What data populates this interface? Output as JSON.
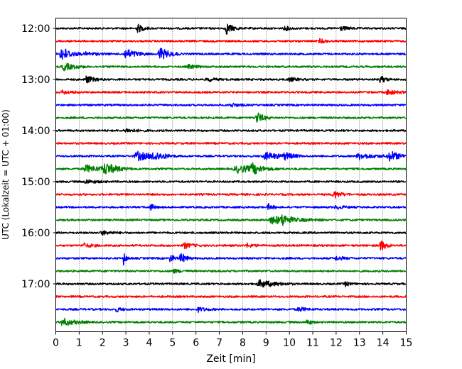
{
  "chart_data": {
    "type": "line",
    "title": "",
    "xlabel": "Zeit  [min]",
    "ylabel": "UTC (Lokalzeit = UTC + 01:00)",
    "xlim": [
      0,
      15
    ],
    "x_ticks": [
      0,
      1,
      2,
      3,
      4,
      5,
      6,
      7,
      8,
      9,
      10,
      11,
      12,
      13,
      14,
      15
    ],
    "x_tick_labels": [
      "0",
      "1",
      "2",
      "3",
      "4",
      "5",
      "6",
      "7",
      "8",
      "9",
      "10",
      "11",
      "12",
      "13",
      "14",
      "15"
    ],
    "y_tick_labels": [
      "12:00",
      "13:00",
      "14:00",
      "15:00",
      "16:00",
      "17:00"
    ],
    "grid": "vertical dotted at each minute",
    "trace_interval_min": 15,
    "color_cycle": [
      "#000000",
      "#ff0000",
      "#0000ff",
      "#008000"
    ],
    "series": [
      {
        "start": "12:00",
        "color": "#000000",
        "events": [
          {
            "x": 3.5,
            "amp": 6,
            "dur": 0.2
          },
          {
            "x": 7.3,
            "amp": 8,
            "dur": 0.25
          },
          {
            "x": 9.8,
            "amp": 3,
            "dur": 0.2
          },
          {
            "x": 12.2,
            "amp": 2.5,
            "dur": 0.3
          }
        ]
      },
      {
        "start": "12:15",
        "color": "#ff0000",
        "events": [
          {
            "x": 11.3,
            "amp": 3,
            "dur": 0.2
          }
        ]
      },
      {
        "start": "12:30",
        "color": "#0000ff",
        "events": [
          {
            "x": 0.25,
            "amp": 10,
            "dur": 0.35
          },
          {
            "x": 3.0,
            "amp": 7,
            "dur": 0.4
          },
          {
            "x": 4.45,
            "amp": 9,
            "dur": 0.35
          },
          {
            "x": 1.3,
            "amp": 2.5,
            "dur": 0.4
          }
        ]
      },
      {
        "start": "12:45",
        "color": "#008000",
        "events": [
          {
            "x": 0.35,
            "amp": 5,
            "dur": 0.4
          },
          {
            "x": 5.7,
            "amp": 2.5,
            "dur": 0.3
          }
        ]
      },
      {
        "start": "13:00",
        "color": "#000000",
        "events": [
          {
            "x": 1.3,
            "amp": 5,
            "dur": 0.3
          },
          {
            "x": 6.5,
            "amp": 2.5,
            "dur": 0.3
          },
          {
            "x": 10.0,
            "amp": 2.5,
            "dur": 0.3
          },
          {
            "x": 13.9,
            "amp": 5,
            "dur": 0.2
          }
        ]
      },
      {
        "start": "13:15",
        "color": "#ff0000",
        "events": [
          {
            "x": 0.3,
            "amp": 2.5,
            "dur": 0.3
          },
          {
            "x": 14.2,
            "amp": 3.5,
            "dur": 0.35
          }
        ]
      },
      {
        "start": "13:30",
        "color": "#0000ff",
        "events": [
          {
            "x": 7.5,
            "amp": 2.5,
            "dur": 0.3
          }
        ]
      },
      {
        "start": "13:45",
        "color": "#008000",
        "events": [
          {
            "x": 8.6,
            "amp": 8,
            "dur": 0.25
          }
        ]
      },
      {
        "start": "14:00",
        "color": "#000000",
        "events": [
          {
            "x": 3.0,
            "amp": 2.5,
            "dur": 0.4
          }
        ]
      },
      {
        "start": "14:15",
        "color": "#ff0000",
        "events": []
      },
      {
        "start": "14:30",
        "color": "#0000ff",
        "events": [
          {
            "x": 3.5,
            "amp": 6,
            "dur": 0.6
          },
          {
            "x": 4.2,
            "amp": 5,
            "dur": 0.4
          },
          {
            "x": 9.0,
            "amp": 5,
            "dur": 0.6
          },
          {
            "x": 9.8,
            "amp": 4,
            "dur": 0.3
          },
          {
            "x": 13.0,
            "amp": 4,
            "dur": 0.6
          },
          {
            "x": 14.3,
            "amp": 7,
            "dur": 0.4
          }
        ]
      },
      {
        "start": "14:45",
        "color": "#008000",
        "events": [
          {
            "x": 1.3,
            "amp": 5,
            "dur": 0.6
          },
          {
            "x": 2.1,
            "amp": 7,
            "dur": 0.5
          },
          {
            "x": 7.8,
            "amp": 5,
            "dur": 0.8
          },
          {
            "x": 8.4,
            "amp": 6,
            "dur": 0.3
          }
        ]
      },
      {
        "start": "15:00",
        "color": "#000000",
        "events": [
          {
            "x": 1.3,
            "amp": 2.5,
            "dur": 0.4
          }
        ]
      },
      {
        "start": "15:15",
        "color": "#ff0000",
        "events": [
          {
            "x": 11.9,
            "amp": 5,
            "dur": 0.3
          }
        ]
      },
      {
        "start": "15:30",
        "color": "#0000ff",
        "events": [
          {
            "x": 4.05,
            "amp": 5,
            "dur": 0.15
          },
          {
            "x": 9.1,
            "amp": 4,
            "dur": 0.2
          },
          {
            "x": 12.0,
            "amp": 2.5,
            "dur": 0.3
          }
        ]
      },
      {
        "start": "15:45",
        "color": "#008000",
        "events": [
          {
            "x": 9.3,
            "amp": 5,
            "dur": 0.9
          },
          {
            "x": 9.7,
            "amp": 6,
            "dur": 0.2
          }
        ]
      },
      {
        "start": "16:00",
        "color": "#000000",
        "events": [
          {
            "x": 2.0,
            "amp": 2.5,
            "dur": 0.4
          }
        ]
      },
      {
        "start": "16:15",
        "color": "#ff0000",
        "events": [
          {
            "x": 1.2,
            "amp": 3,
            "dur": 0.3
          },
          {
            "x": 5.5,
            "amp": 4,
            "dur": 0.3
          },
          {
            "x": 8.2,
            "amp": 2.5,
            "dur": 0.3
          },
          {
            "x": 13.9,
            "amp": 8,
            "dur": 0.2
          }
        ]
      },
      {
        "start": "16:30",
        "color": "#0000ff",
        "events": [
          {
            "x": 2.9,
            "amp": 9,
            "dur": 0.1
          },
          {
            "x": 4.9,
            "amp": 6,
            "dur": 0.15
          },
          {
            "x": 5.35,
            "amp": 8,
            "dur": 0.2
          },
          {
            "x": 12.0,
            "amp": 2.5,
            "dur": 0.3
          }
        ]
      },
      {
        "start": "16:45",
        "color": "#008000",
        "events": [
          {
            "x": 5.0,
            "amp": 2.5,
            "dur": 0.3
          }
        ]
      },
      {
        "start": "17:00",
        "color": "#000000",
        "events": [
          {
            "x": 8.75,
            "amp": 5,
            "dur": 0.6
          },
          {
            "x": 12.4,
            "amp": 3,
            "dur": 0.2
          }
        ]
      },
      {
        "start": "17:15",
        "color": "#ff0000",
        "events": []
      },
      {
        "start": "17:30",
        "color": "#0000ff",
        "events": [
          {
            "x": 2.6,
            "amp": 3,
            "dur": 0.2
          },
          {
            "x": 6.1,
            "amp": 3,
            "dur": 0.3
          },
          {
            "x": 10.4,
            "amp": 3,
            "dur": 0.3
          }
        ]
      },
      {
        "start": "17:45",
        "color": "#008000",
        "events": [
          {
            "x": 0.3,
            "amp": 5,
            "dur": 0.5
          },
          {
            "x": 10.75,
            "amp": 5,
            "dur": 0.15
          }
        ]
      }
    ]
  }
}
